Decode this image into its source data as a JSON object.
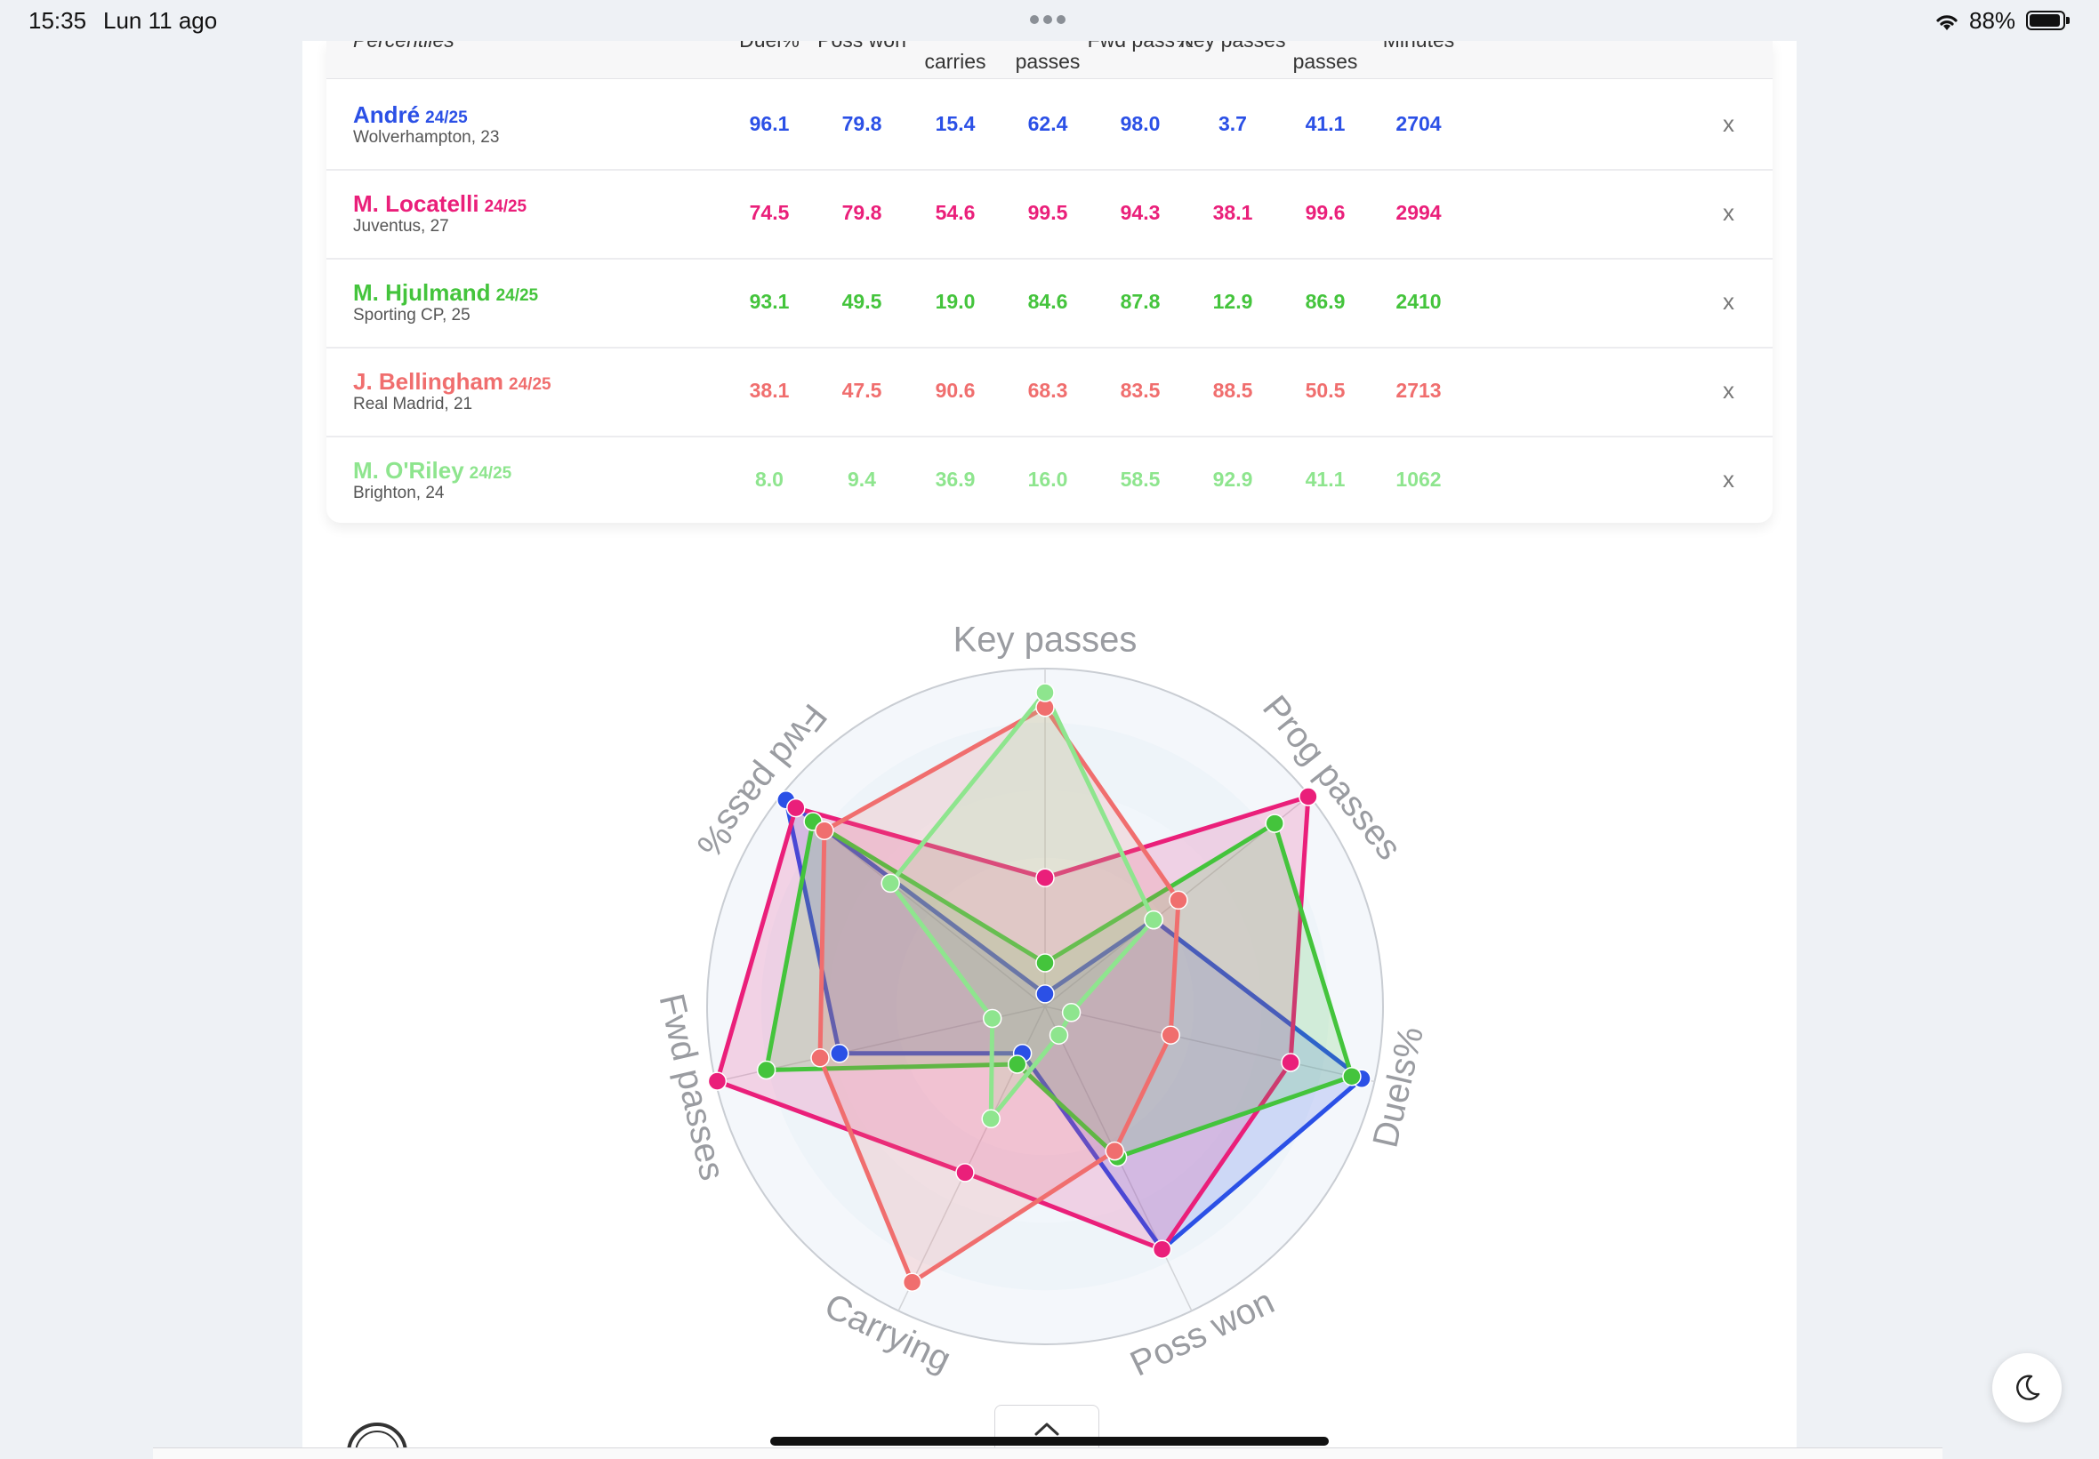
{
  "status_bar": {
    "time": "15:35",
    "date": "Lun 11 ago",
    "battery": "88%"
  },
  "table": {
    "columns": [
      {
        "label": "Percentiles",
        "clipped": true
      },
      {
        "label": "Duel%",
        "clipped": true
      },
      {
        "label": "Poss won",
        "clipped": true
      },
      {
        "label": "carries",
        "clipped": false
      },
      {
        "label": "passes",
        "clipped": false
      },
      {
        "label": "Fwd pass%",
        "clipped": true
      },
      {
        "label": "Key passes",
        "clipped": true
      },
      {
        "label": "passes",
        "clipped": false
      },
      {
        "label": "Minutes",
        "clipped": true
      }
    ],
    "remove_label": "x",
    "rows": [
      {
        "name": "André",
        "season": "24/25",
        "club": "Wolverhampton, 23",
        "color": "#2b50e6",
        "values": [
          "96.1",
          "79.8",
          "15.4",
          "62.4",
          "98.0",
          "3.7",
          "41.1",
          "2704"
        ]
      },
      {
        "name": "M. Locatelli",
        "season": "24/25",
        "club": "Juventus, 27",
        "color": "#ea1f7a",
        "values": [
          "74.5",
          "79.8",
          "54.6",
          "99.5",
          "94.3",
          "38.1",
          "99.6",
          "2994"
        ]
      },
      {
        "name": "M. Hjulmand",
        "season": "24/25",
        "club": "Sporting CP, 25",
        "color": "#44c43c",
        "values": [
          "93.1",
          "49.5",
          "19.0",
          "84.6",
          "87.8",
          "12.9",
          "86.9",
          "2410"
        ]
      },
      {
        "name": "J. Bellingham",
        "season": "24/25",
        "club": "Real Madrid, 21",
        "color": "#f06e6e",
        "values": [
          "38.1",
          "47.5",
          "90.6",
          "68.3",
          "83.5",
          "88.5",
          "50.5",
          "2713"
        ]
      },
      {
        "name": "M. O'Riley",
        "season": "24/25",
        "club": "Brighton, 24",
        "color": "#8ee58e",
        "values": [
          "8.0",
          "9.4",
          "36.9",
          "16.0",
          "58.5",
          "92.9",
          "41.1",
          "1062"
        ]
      }
    ]
  },
  "chart_data": {
    "type": "radar",
    "axes": [
      "Key passes",
      "Prog passes",
      "Duels%",
      "Poss won",
      "Carrying",
      "Fwd passes",
      "Fwd pass%"
    ],
    "range": [
      0,
      100
    ],
    "grid": true,
    "series": [
      {
        "name": "André",
        "color": "#2b50e6",
        "values": [
          3.7,
          41.1,
          96.1,
          79.8,
          15.4,
          62.4,
          98.0
        ]
      },
      {
        "name": "M. Locatelli",
        "color": "#ea1f7a",
        "values": [
          38.1,
          99.6,
          74.5,
          79.8,
          54.6,
          99.5,
          94.3
        ]
      },
      {
        "name": "M. Hjulmand",
        "color": "#44c43c",
        "values": [
          12.9,
          86.9,
          93.1,
          49.5,
          19.0,
          84.6,
          87.8
        ]
      },
      {
        "name": "J. Bellingham",
        "color": "#f06e6e",
        "values": [
          88.5,
          50.5,
          38.1,
          47.5,
          90.6,
          68.3,
          83.5
        ]
      },
      {
        "name": "M. O'Riley",
        "color": "#8ee58e",
        "values": [
          92.9,
          41.1,
          8.0,
          9.4,
          36.9,
          16.0,
          58.5
        ]
      }
    ]
  }
}
